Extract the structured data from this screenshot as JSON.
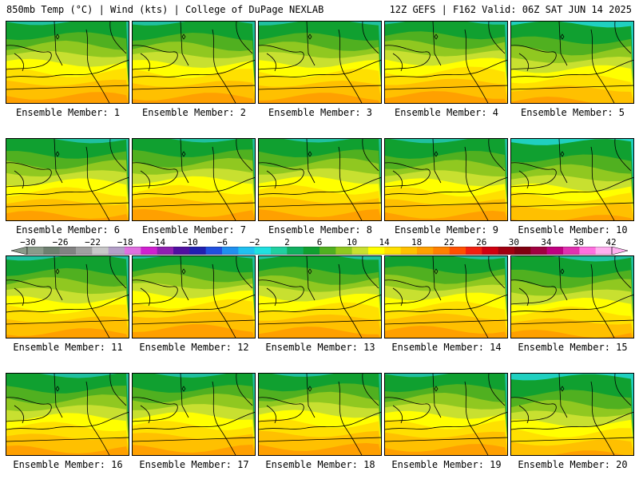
{
  "header": {
    "left": "850mb Temp (°C) | Wind (kts) | College of DuPage NEXLAB",
    "right": "12Z GEFS | F162 Valid: 06Z SAT JUN 14 2025"
  },
  "members": [
    {
      "label": "Ensemble Member: 1",
      "warm": 0.55
    },
    {
      "label": "Ensemble Member: 2",
      "warm": 0.5
    },
    {
      "label": "Ensemble Member: 3",
      "warm": 0.5
    },
    {
      "label": "Ensemble Member: 4",
      "warm": 0.6
    },
    {
      "label": "Ensemble Member: 5",
      "warm": 0.25
    },
    {
      "label": "Ensemble Member: 6",
      "warm": 0.45
    },
    {
      "label": "Ensemble Member: 7",
      "warm": 0.55
    },
    {
      "label": "Ensemble Member: 8",
      "warm": 0.55
    },
    {
      "label": "Ensemble Member: 9",
      "warm": 0.45
    },
    {
      "label": "Ensemble Member: 10",
      "warm": 0.2
    },
    {
      "label": "Ensemble Member: 11",
      "warm": 0.45
    },
    {
      "label": "Ensemble Member: 12",
      "warm": 0.7
    },
    {
      "label": "Ensemble Member: 13",
      "warm": 0.55
    },
    {
      "label": "Ensemble Member: 14",
      "warm": 0.6
    },
    {
      "label": "Ensemble Member: 15",
      "warm": 0.35
    },
    {
      "label": "Ensemble Member: 16",
      "warm": 0.45
    },
    {
      "label": "Ensemble Member: 17",
      "warm": 0.5
    },
    {
      "label": "Ensemble Member: 18",
      "warm": 0.6
    },
    {
      "label": "Ensemble Member: 19",
      "warm": 0.55
    },
    {
      "label": "Ensemble Member: 20",
      "warm": 0.15
    }
  ],
  "colorbar": {
    "ticks": [
      "−30",
      "−26",
      "−22",
      "−18",
      "−14",
      "−10",
      "−6",
      "−2",
      "2",
      "6",
      "10",
      "14",
      "18",
      "22",
      "26",
      "30",
      "34",
      "38",
      "42"
    ],
    "colors": [
      "#8a9a8a",
      "#6e8070",
      "#828282",
      "#a0a0a0",
      "#c8c8c8",
      "#b4a0c8",
      "#e070e0",
      "#d020d0",
      "#9020b0",
      "#5010a0",
      "#2020b0",
      "#2050e0",
      "#2090f0",
      "#20c0f0",
      "#20e0e0",
      "#20d0a0",
      "#10b060",
      "#10a030",
      "#50b020",
      "#90c820",
      "#c8e030",
      "#ffff00",
      "#ffe000",
      "#ffc000",
      "#ffa000",
      "#ff8000",
      "#ff5000",
      "#f02010",
      "#d00010",
      "#a00010",
      "#800010",
      "#a00040",
      "#c00080",
      "#e030b0",
      "#ff70e0",
      "#ffb0f0"
    ]
  }
}
